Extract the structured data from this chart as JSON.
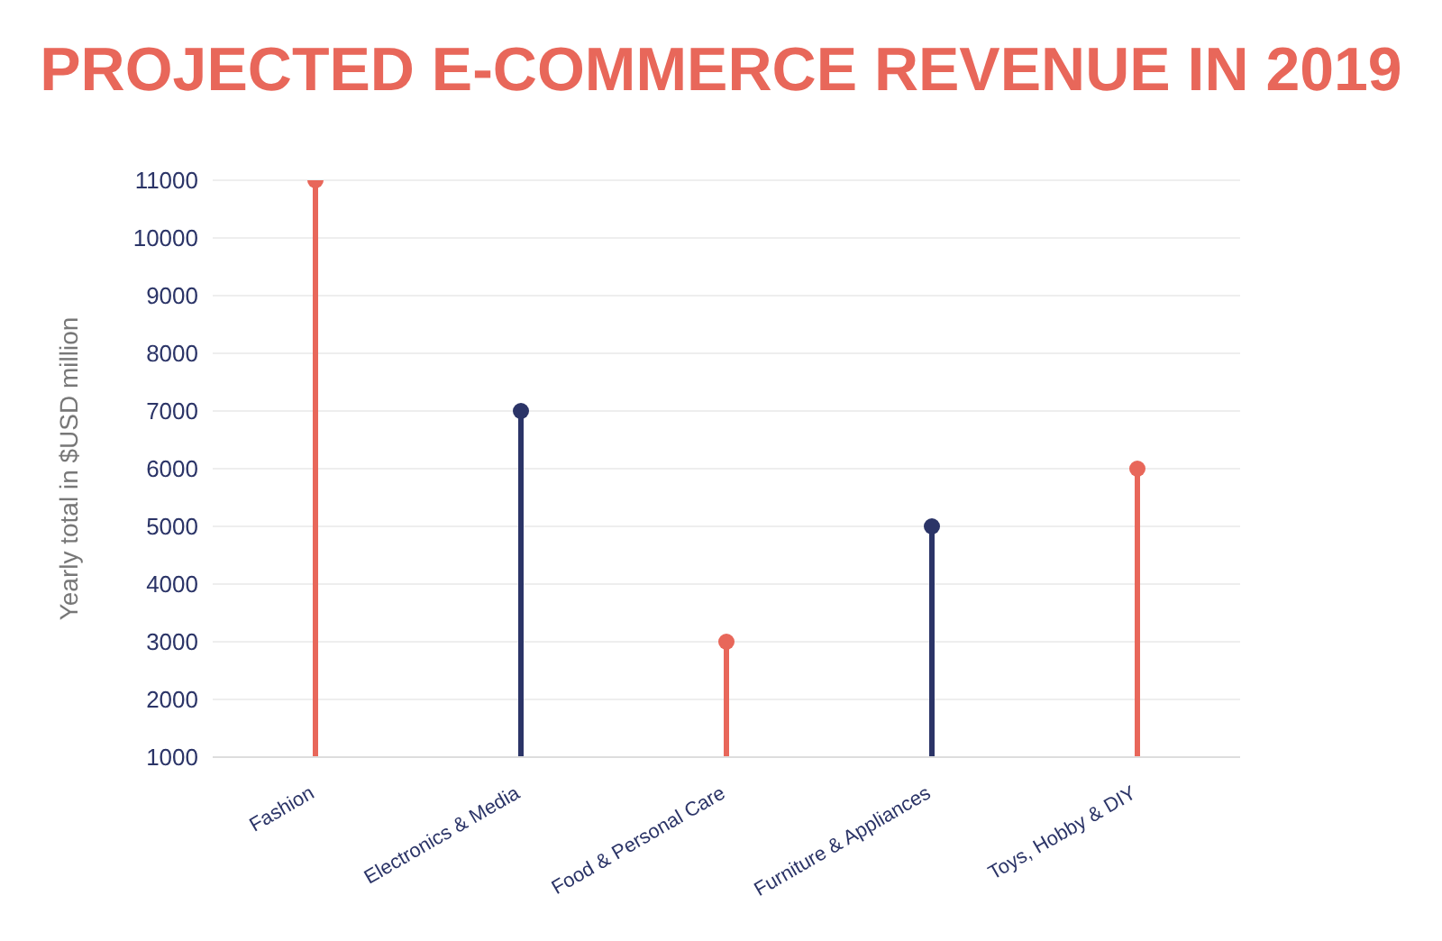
{
  "chart_data": {
    "type": "lollipop",
    "title": "PROJECTED E-COMMERCE REVENUE IN 2019",
    "ylabel": "Yearly total in $USD million",
    "categories": [
      "Fashion",
      "Electronics & Media",
      "Food & Personal Care",
      "Furniture & Appliances",
      "Toys, Hobby & DIY"
    ],
    "values": [
      11000,
      7000,
      3000,
      5000,
      6000
    ],
    "colors": [
      "#e8675a",
      "#2b3467",
      "#e8675a",
      "#2b3467",
      "#e8675a"
    ],
    "ylim": [
      1000,
      11000
    ],
    "yticks": [
      1000,
      2000,
      3000,
      4000,
      5000,
      6000,
      7000,
      8000,
      9000,
      10000,
      11000
    ],
    "grid": "y",
    "marker": "circle"
  }
}
